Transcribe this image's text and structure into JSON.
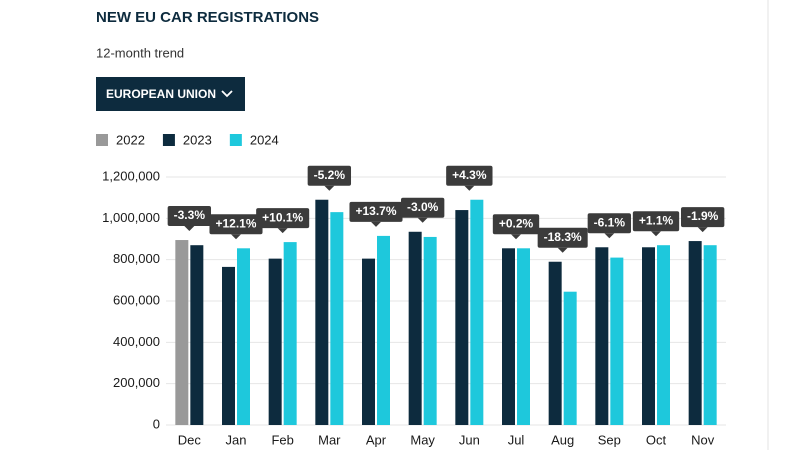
{
  "chart_data": {
    "type": "bar",
    "title": "NEW EU CAR REGISTRATIONS",
    "subtitle": "12-month trend",
    "categories": [
      "Dec",
      "Jan",
      "Feb",
      "Mar",
      "Apr",
      "May",
      "Jun",
      "Jul",
      "Aug",
      "Sep",
      "Oct",
      "Nov"
    ],
    "series": [
      {
        "name": "2022",
        "color": "#999999",
        "values": [
          895000,
          null,
          null,
          null,
          null,
          null,
          null,
          null,
          null,
          null,
          null,
          null
        ]
      },
      {
        "name": "2023",
        "color": "#0d2b3e",
        "values": [
          870000,
          765000,
          805000,
          1090000,
          805000,
          935000,
          1040000,
          855000,
          790000,
          860000,
          860000,
          890000
        ]
      },
      {
        "name": "2024",
        "color": "#1ec8dc",
        "values": [
          null,
          855000,
          885000,
          1030000,
          915000,
          910000,
          1090000,
          855000,
          645000,
          810000,
          870000,
          870000
        ]
      }
    ],
    "annotations": [
      "-3.3%",
      "+12.1%",
      "+10.1%",
      "-5.2%",
      "+13.7%",
      "-3.0%",
      "+4.3%",
      "+0.2%",
      "-18.3%",
      "-6.1%",
      "+1.1%",
      "-1.9%"
    ],
    "ylim": [
      0,
      1200000
    ],
    "yticks": [
      0,
      {
        "value": 200000,
        "label": "200,000"
      },
      {
        "value": 400000,
        "label": "400,000"
      },
      {
        "value": 600000,
        "label": "600,000"
      },
      {
        "value": 800000,
        "label": "800,000"
      },
      {
        "value": 1000000,
        "label": "1,000,000"
      },
      {
        "value": 1200000,
        "label": "1,200,000"
      }
    ],
    "grid": true,
    "legend": "top-left"
  },
  "controls": {
    "region": "EUROPEAN UNION"
  }
}
